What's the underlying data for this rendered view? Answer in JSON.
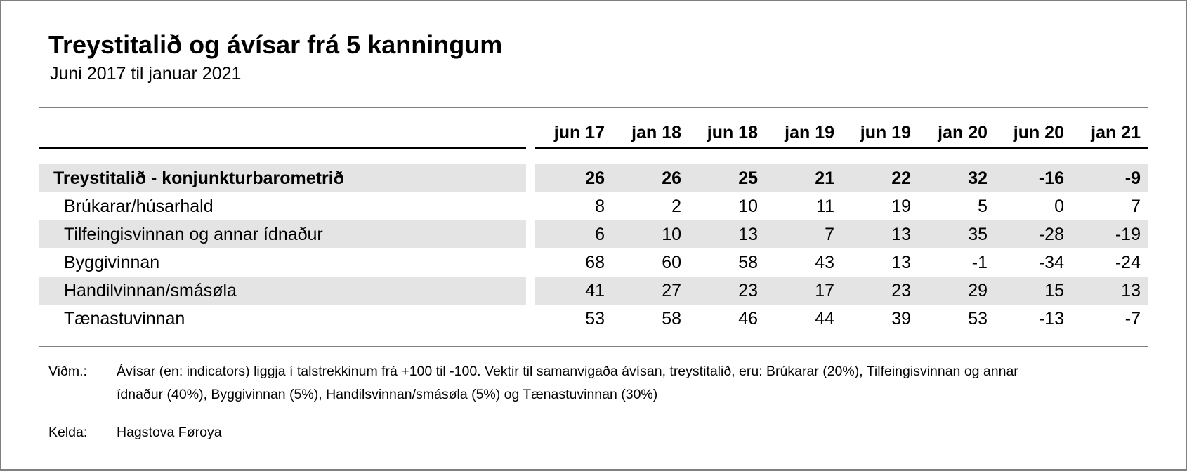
{
  "header": {
    "title": "Treystitalið og ávísar frá 5 kanningum",
    "subtitle": "Juni 2017 til januar 2021"
  },
  "table": {
    "column_headers": [
      "jun 17",
      "jan 18",
      "jun 18",
      "jan 19",
      "jun 19",
      "jan 20",
      "jun 20",
      "jan 21"
    ],
    "rows": [
      {
        "label": "Treystitalið - konjunkturbarometrið",
        "bold": true,
        "striped": true,
        "values": [
          26,
          26,
          25,
          21,
          22,
          32,
          -16,
          -9
        ]
      },
      {
        "label": "Brúkarar/húsarhald",
        "bold": false,
        "striped": false,
        "values": [
          8,
          2,
          10,
          11,
          19,
          5,
          0,
          7
        ]
      },
      {
        "label": "Tilfeingisvinnan og annar ídnaður",
        "bold": false,
        "striped": true,
        "values": [
          6,
          10,
          13,
          7,
          13,
          35,
          -28,
          -19
        ]
      },
      {
        "label": "Byggivinnan",
        "bold": false,
        "striped": false,
        "values": [
          68,
          60,
          58,
          43,
          13,
          -1,
          -34,
          -24
        ]
      },
      {
        "label": "Handilvinnan/smásøla",
        "bold": false,
        "striped": true,
        "values": [
          41,
          27,
          23,
          17,
          23,
          29,
          15,
          13
        ]
      },
      {
        "label": "Tænastuvinnan",
        "bold": false,
        "striped": false,
        "values": [
          53,
          58,
          46,
          44,
          39,
          53,
          -13,
          -7
        ]
      }
    ]
  },
  "footnotes": {
    "note_label": "Viðm.:",
    "note_lines": [
      "Ávísar (en: indicators) liggja í talstrekkinum frá +100 til -100. Vektir til samanvigaða ávísan, treystitalið, eru: Brúkarar (20%), Tilfeingisvinnan og annar",
      "ídnaður (40%), Byggivinnan (5%), Handilsvinnan/smásøla (5%) og Tænastuvinnan (30%)"
    ],
    "source_label": "Kelda:",
    "source_text": "Hagstova Føroya"
  },
  "colors": {
    "stripe": "#e4e4e4",
    "rule": "#808080",
    "header_underline": "#000000",
    "text": "#000000",
    "page_border": "#7f7f7f"
  },
  "chart_data": {
    "type": "table",
    "title": "Treystitalið og ávísar frá 5 kanningum",
    "subtitle": "Juni 2017 til januar 2021",
    "categories": [
      "jun 17",
      "jan 18",
      "jun 18",
      "jan 19",
      "jun 19",
      "jan 20",
      "jun 20",
      "jan 21"
    ],
    "series": [
      {
        "name": "Treystitalið - konjunkturbarometrið",
        "values": [
          26,
          26,
          25,
          21,
          22,
          32,
          -16,
          -9
        ]
      },
      {
        "name": "Brúkarar/húsarhald",
        "values": [
          8,
          2,
          10,
          11,
          19,
          5,
          0,
          7
        ]
      },
      {
        "name": "Tilfeingisvinnan og annar ídnaður",
        "values": [
          6,
          10,
          13,
          7,
          13,
          35,
          -28,
          -19
        ]
      },
      {
        "name": "Byggivinnan",
        "values": [
          68,
          60,
          58,
          43,
          13,
          -1,
          -34,
          -24
        ]
      },
      {
        "name": "Handilvinnan/smásøla",
        "values": [
          41,
          27,
          23,
          17,
          23,
          29,
          15,
          13
        ]
      },
      {
        "name": "Tænastuvinnan",
        "values": [
          53,
          58,
          46,
          44,
          39,
          53,
          -13,
          -7
        ]
      }
    ],
    "value_range": [
      -100,
      100
    ],
    "note": "Ávísar (en: indicators) liggja í talstrekkinum frá +100 til -100. Vektir til samanvigaða ávísan, treystitalið, eru: Brúkarar (20%), Tilfeingisvinnan og annar ídnaður (40%), Byggivinnan (5%), Handilsvinnan/smásøla (5%) og Tænastuvinnan (30%)",
    "source": "Hagstova Føroya"
  }
}
